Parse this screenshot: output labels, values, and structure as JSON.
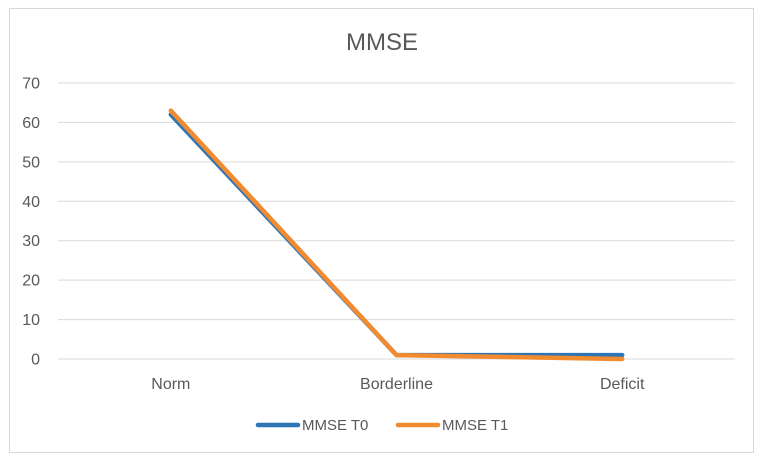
{
  "chart_data": {
    "type": "line",
    "title": "MMSE",
    "categories": [
      "Norm",
      "Borderline",
      "Deficit"
    ],
    "series": [
      {
        "name": "MMSE T0",
        "values": [
          62,
          1,
          1
        ],
        "color": "#2E75B6"
      },
      {
        "name": "MMSE T1",
        "values": [
          63,
          1,
          0
        ],
        "color": "#F28A30"
      }
    ],
    "ylim": [
      0,
      70
    ],
    "yticks": [
      0,
      10,
      20,
      30,
      40,
      50,
      60,
      70
    ],
    "grid": true,
    "legend": "bottom",
    "xlabel": "",
    "ylabel": ""
  }
}
